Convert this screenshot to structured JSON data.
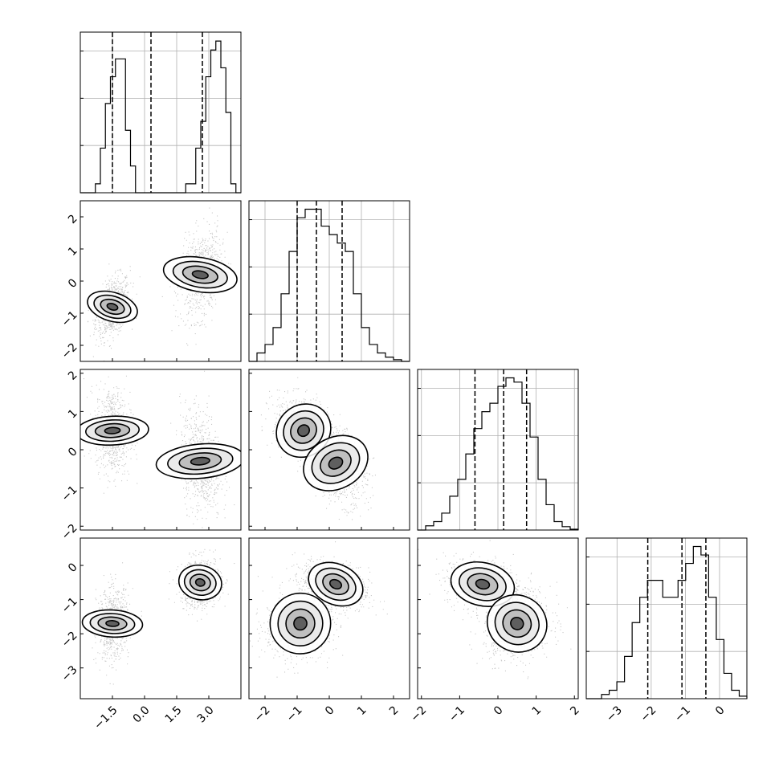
{
  "chart_data": {
    "type": "corner",
    "parameters": [
      {
        "xlim": [
          -3.0,
          4.5
        ],
        "xticks": [
          -1.5,
          0.0,
          1.5,
          3.0
        ],
        "xtick_labels": [
          "−1.5",
          "0.0",
          "1.5",
          "3.0"
        ],
        "quantiles": [
          -1.5,
          0.3,
          2.7
        ],
        "hist_values": [
          0,
          0,
          0,
          1,
          5,
          10,
          13,
          15,
          15,
          7,
          3,
          0,
          0,
          0,
          0,
          0,
          0,
          0,
          0,
          0,
          0,
          1,
          1,
          5,
          8,
          13,
          16,
          17,
          14,
          9,
          1,
          0
        ],
        "hist_ylim": [
          0,
          18
        ]
      },
      {
        "xlim": [
          -2.5,
          2.5
        ],
        "xticks": [
          -2,
          -1,
          0,
          1,
          2
        ],
        "xtick_labels": [
          "−2",
          "−1",
          "0",
          "1",
          "2"
        ],
        "yticks": [
          -2,
          -1,
          0,
          1,
          2
        ],
        "ytick_labels": [
          "−2",
          "−1",
          "0",
          "1",
          "2"
        ],
        "quantiles": [
          -1.0,
          -0.4,
          0.4
        ],
        "hist_values": [
          0,
          1,
          2,
          4,
          8,
          13,
          17,
          18,
          18,
          16,
          15,
          14,
          13,
          8,
          4,
          2,
          1,
          0.5,
          0.2,
          0
        ],
        "hist_ylim": [
          0,
          19
        ]
      },
      {
        "xlim": [
          -2.1,
          2.1
        ],
        "xticks": [
          -2,
          -1,
          0,
          1,
          2
        ],
        "xtick_labels": [
          "−2",
          "−1",
          "0",
          "1",
          "2"
        ],
        "yticks": [
          -2,
          -1,
          0,
          1,
          2
        ],
        "ytick_labels": [
          "−2",
          "−1",
          "0",
          "1",
          "2"
        ],
        "quantiles": [
          -0.6,
          0.15,
          0.75
        ],
        "hist_values": [
          0,
          0.5,
          1,
          2,
          4,
          6,
          9,
          12,
          14,
          15,
          17,
          18,
          17.5,
          15,
          11,
          6,
          3,
          1,
          0.4,
          0.1
        ],
        "hist_ylim": [
          0,
          19
        ]
      },
      {
        "xlim": [
          -3.9,
          0.8
        ],
        "xticks": [
          -3,
          -2,
          -1,
          0
        ],
        "xtick_labels": [
          "−3",
          "−2",
          "−1",
          "0"
        ],
        "yticks": [
          -3,
          -2,
          -1,
          0
        ],
        "ytick_labels": [
          "−3",
          "−2",
          "−1",
          "0"
        ],
        "quantiles": [
          -2.1,
          -1.1,
          -0.4
        ],
        "hist_values": [
          0,
          0,
          0.5,
          1,
          2,
          5,
          9,
          12,
          14,
          14,
          12,
          12,
          14,
          16,
          18,
          17,
          12,
          7,
          3,
          1,
          0.3
        ],
        "hist_ylim": [
          0,
          19
        ]
      }
    ],
    "scatter_blobs": [
      {
        "row": 1,
        "col": 0,
        "modes": [
          {
            "x": -1.5,
            "y": -0.8,
            "sx": 0.32,
            "sy": 0.38,
            "rho": 0.4
          },
          {
            "x": 2.6,
            "y": 0.2,
            "sx": 0.38,
            "sy": 0.55,
            "rho": 0.3
          }
        ]
      },
      {
        "row": 2,
        "col": 0,
        "modes": [
          {
            "x": -1.5,
            "y": 0.5,
            "sx": 0.32,
            "sy": 0.45,
            "rho": -0.1
          },
          {
            "x": 2.6,
            "y": -0.3,
            "sx": 0.38,
            "sy": 0.55,
            "rho": -0.2
          }
        ]
      },
      {
        "row": 2,
        "col": 1,
        "modes": [
          {
            "x": -0.8,
            "y": 0.5,
            "sx": 0.38,
            "sy": 0.35,
            "rho": -0.4
          },
          {
            "x": 0.2,
            "y": -0.35,
            "sx": 0.38,
            "sy": 0.42,
            "rho": -0.4
          }
        ]
      },
      {
        "row": 3,
        "col": 0,
        "modes": [
          {
            "x": -1.5,
            "y": -1.7,
            "sx": 0.3,
            "sy": 0.42,
            "rho": 0.1
          },
          {
            "x": 2.6,
            "y": -0.5,
            "sx": 0.38,
            "sy": 0.3,
            "rho": 0.1
          }
        ]
      },
      {
        "row": 3,
        "col": 1,
        "modes": [
          {
            "x": -0.9,
            "y": -1.7,
            "sx": 0.45,
            "sy": 0.42,
            "rho": 0.2
          },
          {
            "x": 0.2,
            "y": -0.55,
            "sx": 0.42,
            "sy": 0.28,
            "rho": -0.4
          }
        ]
      },
      {
        "row": 3,
        "col": 2,
        "modes": [
          {
            "x": -0.4,
            "y": -0.55,
            "sx": 0.4,
            "sy": 0.3,
            "rho": -0.2
          },
          {
            "x": 0.5,
            "y": -1.7,
            "sx": 0.35,
            "sy": 0.42,
            "rho": 0.1
          }
        ]
      }
    ],
    "grid": true,
    "colors": {
      "line": "#000000",
      "grid": "#b0b0b0",
      "points": "#000000"
    }
  }
}
